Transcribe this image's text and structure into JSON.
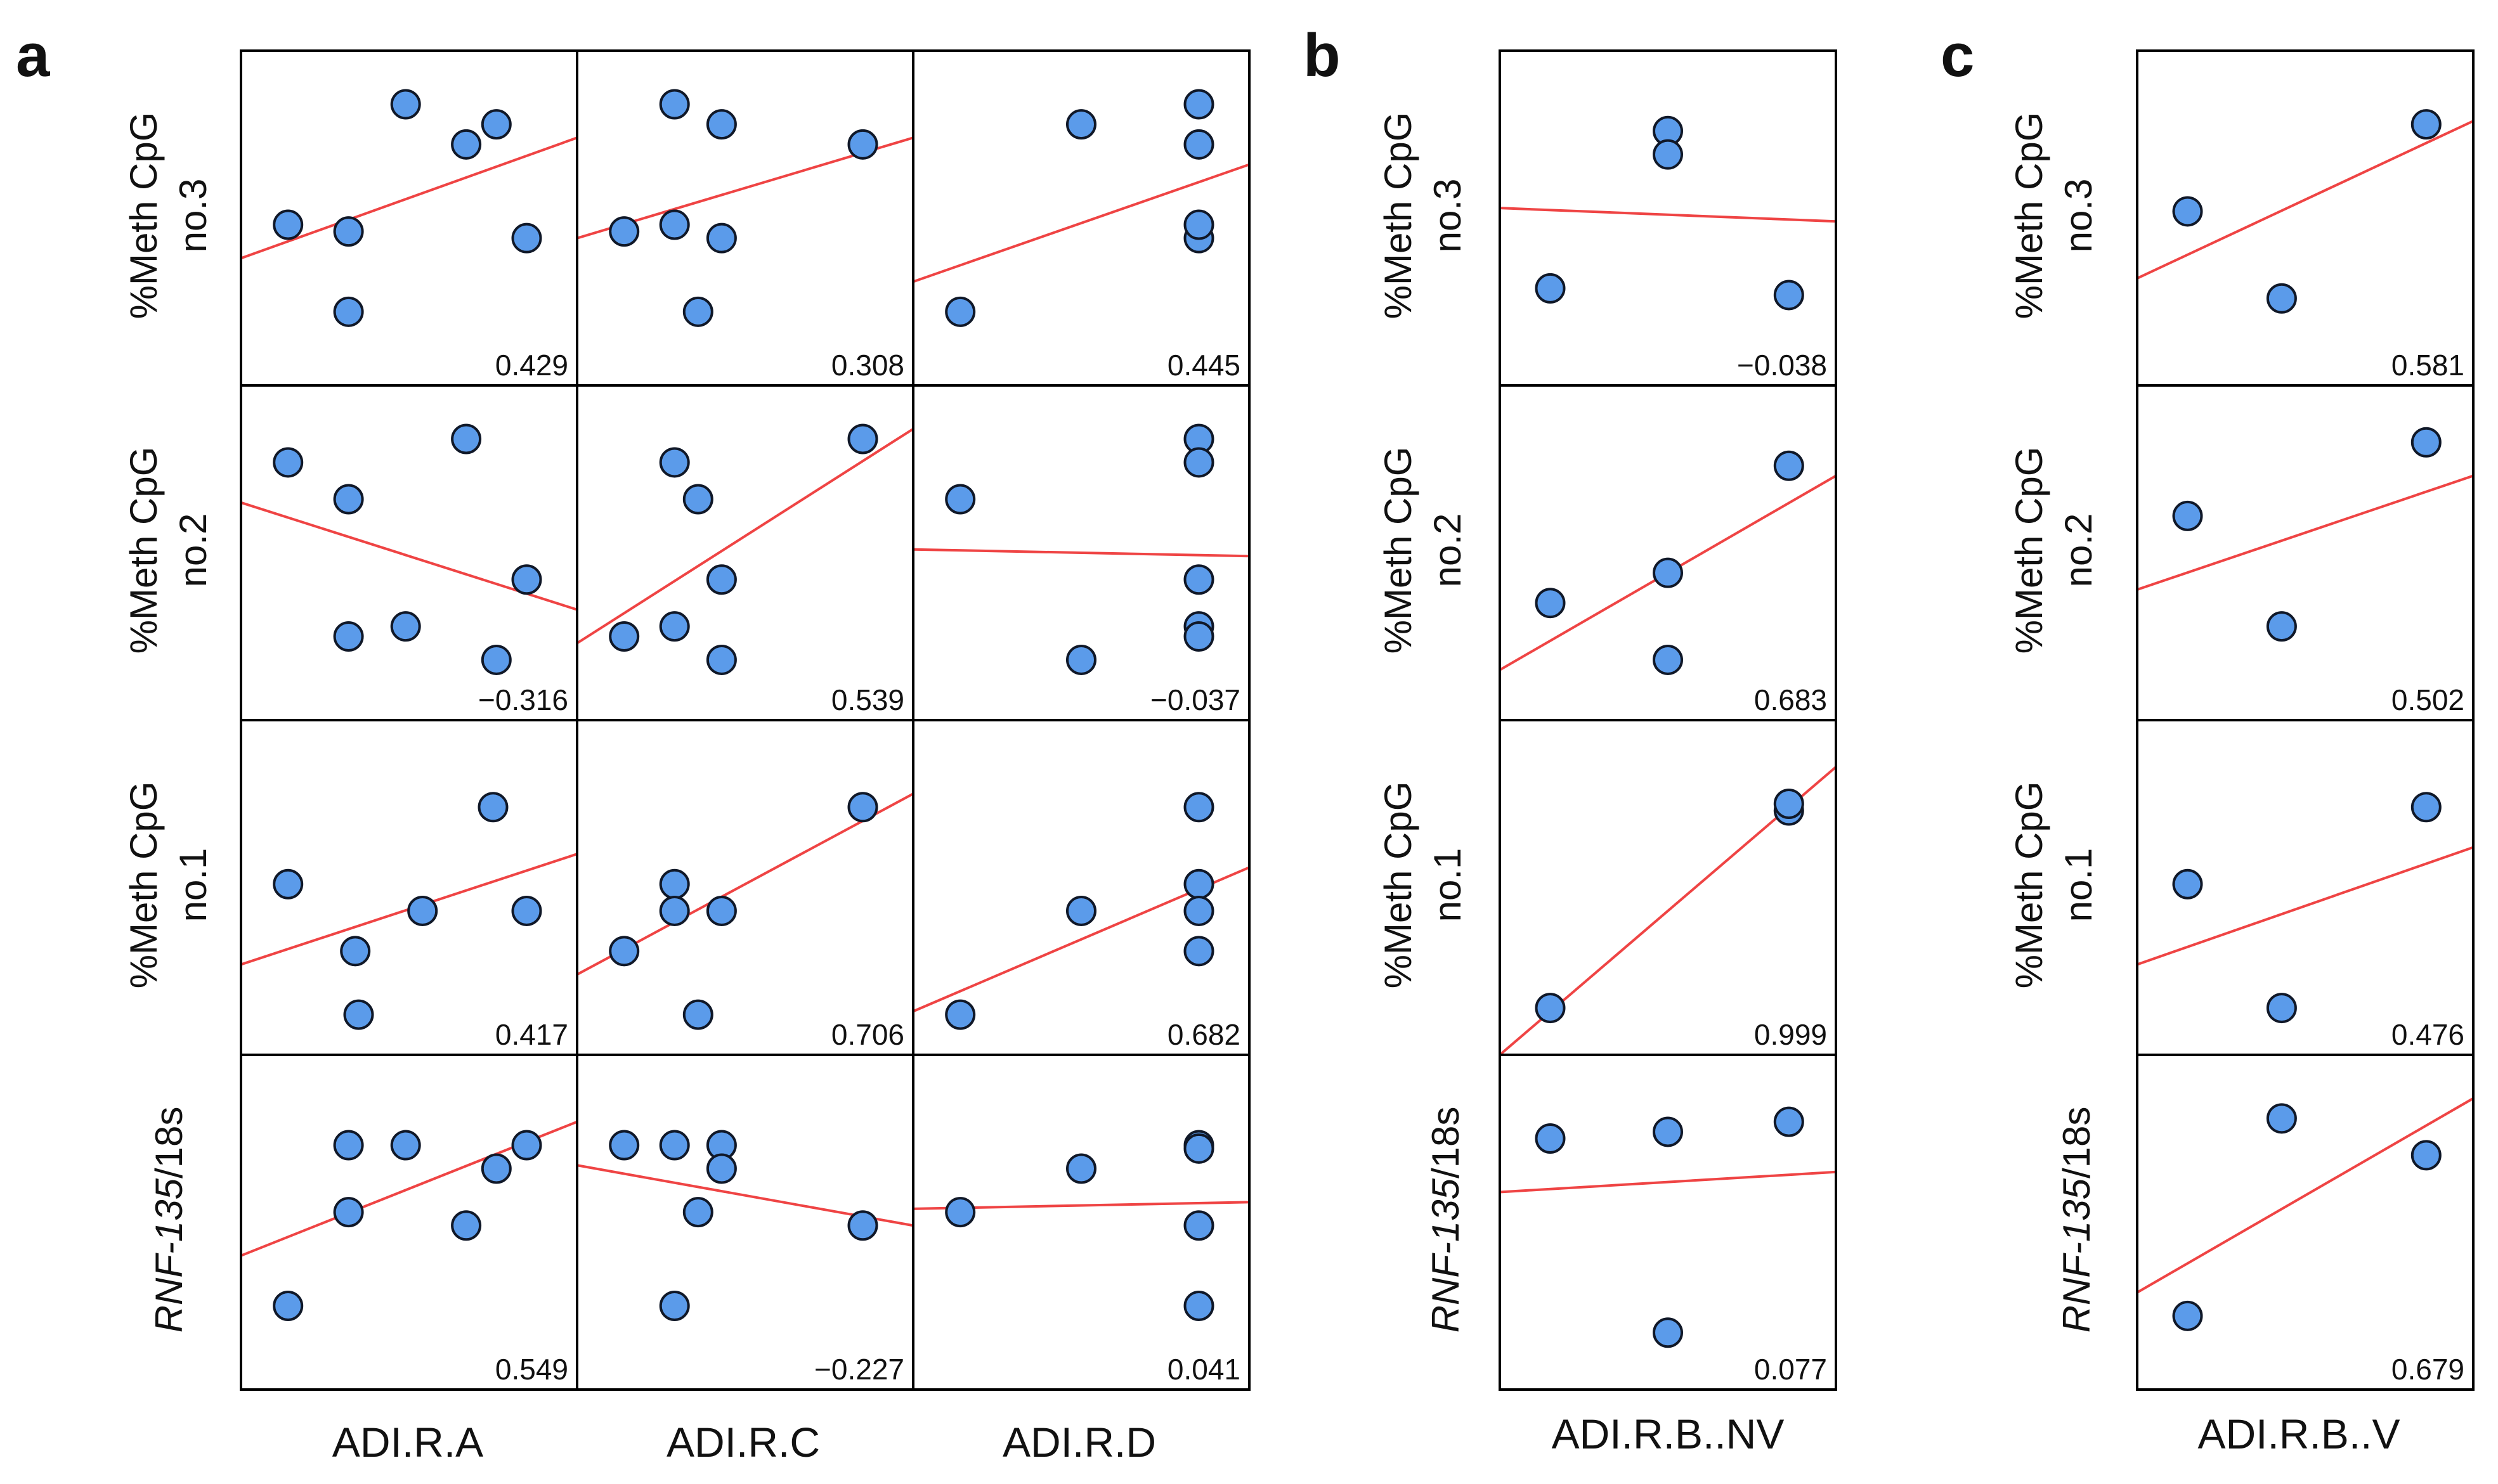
{
  "panels": [
    {
      "letter": "a",
      "rows": [
        {
          "label": "%Meth CpG",
          "label2": "no.3"
        },
        {
          "label": "%Meth CpG",
          "label2": "no.2"
        },
        {
          "label": "%Meth CpG",
          "label2": "no.1"
        },
        {
          "label": "RNF-135",
          "label2": "/18s"
        }
      ],
      "columns": [
        "ADI.R.A",
        "ADI.R.C",
        "ADI.R.D"
      ]
    },
    {
      "letter": "b",
      "rows": [
        {
          "label": "%Meth CpG",
          "label2": "no.3"
        },
        {
          "label": "%Meth CpG",
          "label2": "no.2"
        },
        {
          "label": "%Meth CpG",
          "label2": "no.1"
        },
        {
          "label": "RNF-135",
          "label2": "/18s"
        }
      ],
      "columns": [
        "ADI.R.B..NV"
      ]
    },
    {
      "letter": "c",
      "rows": [
        {
          "label": "%Meth CpG",
          "label2": "no.3"
        },
        {
          "label": "%Meth CpG",
          "label2": "no.2"
        },
        {
          "label": "%Meth CpG",
          "label2": "no.1"
        },
        {
          "label": "RNF-135",
          "label2": "/18s"
        }
      ],
      "columns": [
        "ADI.R.B..V"
      ]
    }
  ],
  "chart_data": {
    "type": "scatter",
    "description_units": "Values normalized to each cell's own 0-1 range (axes unlabeled in original); fit given as y at x=0 and x=1.",
    "x_range": [
      0,
      1
    ],
    "y_range": [
      0,
      1
    ],
    "cells": [
      {
        "panel": "a",
        "row": 0,
        "col": 0,
        "r": "0.429",
        "points": [
          [
            0.14,
            0.48
          ],
          [
            0.32,
            0.46
          ],
          [
            0.32,
            0.22
          ],
          [
            0.49,
            0.84
          ],
          [
            0.67,
            0.72
          ],
          [
            0.76,
            0.78
          ],
          [
            0.85,
            0.44
          ]
        ],
        "fit": [
          0.38,
          0.74
        ]
      },
      {
        "panel": "a",
        "row": 0,
        "col": 1,
        "r": "0.308",
        "points": [
          [
            0.14,
            0.46
          ],
          [
            0.29,
            0.48
          ],
          [
            0.29,
            0.84
          ],
          [
            0.36,
            0.22
          ],
          [
            0.43,
            0.44
          ],
          [
            0.43,
            0.78
          ],
          [
            0.85,
            0.72
          ]
        ],
        "fit": [
          0.44,
          0.74
        ]
      },
      {
        "panel": "a",
        "row": 0,
        "col": 2,
        "r": "0.445",
        "points": [
          [
            0.14,
            0.22
          ],
          [
            0.5,
            0.78
          ],
          [
            0.85,
            0.44
          ],
          [
            0.85,
            0.48
          ],
          [
            0.85,
            0.72
          ],
          [
            0.85,
            0.84
          ]
        ],
        "fit": [
          0.31,
          0.66
        ]
      },
      {
        "panel": "a",
        "row": 1,
        "col": 0,
        "r": "-0.316",
        "points": [
          [
            0.14,
            0.77
          ],
          [
            0.32,
            0.66
          ],
          [
            0.32,
            0.25
          ],
          [
            0.49,
            0.28
          ],
          [
            0.67,
            0.84
          ],
          [
            0.76,
            0.18
          ],
          [
            0.85,
            0.42
          ]
        ],
        "fit": [
          0.65,
          0.33
        ]
      },
      {
        "panel": "a",
        "row": 1,
        "col": 1,
        "r": "0.539",
        "points": [
          [
            0.14,
            0.25
          ],
          [
            0.29,
            0.77
          ],
          [
            0.29,
            0.28
          ],
          [
            0.36,
            0.66
          ],
          [
            0.43,
            0.42
          ],
          [
            0.43,
            0.18
          ],
          [
            0.85,
            0.84
          ]
        ],
        "fit": [
          0.23,
          0.87
        ]
      },
      {
        "panel": "a",
        "row": 1,
        "col": 2,
        "r": "-0.037",
        "points": [
          [
            0.14,
            0.66
          ],
          [
            0.5,
            0.18
          ],
          [
            0.85,
            0.84
          ],
          [
            0.85,
            0.77
          ],
          [
            0.85,
            0.42
          ],
          [
            0.85,
            0.28
          ],
          [
            0.85,
            0.25
          ]
        ],
        "fit": [
          0.51,
          0.49
        ]
      },
      {
        "panel": "a",
        "row": 2,
        "col": 0,
        "r": "0.417",
        "points": [
          [
            0.14,
            0.51
          ],
          [
            0.34,
            0.31
          ],
          [
            0.35,
            0.12
          ],
          [
            0.54,
            0.43
          ],
          [
            0.75,
            0.74
          ],
          [
            0.85,
            0.43
          ]
        ],
        "fit": [
          0.27,
          0.6
        ]
      },
      {
        "panel": "a",
        "row": 2,
        "col": 1,
        "r": "0.706",
        "points": [
          [
            0.14,
            0.31
          ],
          [
            0.29,
            0.51
          ],
          [
            0.29,
            0.43
          ],
          [
            0.36,
            0.12
          ],
          [
            0.43,
            0.43
          ],
          [
            0.85,
            0.74
          ]
        ],
        "fit": [
          0.24,
          0.78
        ]
      },
      {
        "panel": "a",
        "row": 2,
        "col": 2,
        "r": "0.682",
        "points": [
          [
            0.14,
            0.12
          ],
          [
            0.5,
            0.43
          ],
          [
            0.85,
            0.74
          ],
          [
            0.85,
            0.51
          ],
          [
            0.85,
            0.43
          ],
          [
            0.85,
            0.31
          ]
        ],
        "fit": [
          0.13,
          0.56
        ]
      },
      {
        "panel": "a",
        "row": 3,
        "col": 0,
        "r": "0.549",
        "points": [
          [
            0.14,
            0.25
          ],
          [
            0.32,
            0.53
          ],
          [
            0.32,
            0.73
          ],
          [
            0.49,
            0.73
          ],
          [
            0.67,
            0.49
          ],
          [
            0.76,
            0.66
          ],
          [
            0.85,
            0.73
          ]
        ],
        "fit": [
          0.4,
          0.8
        ]
      },
      {
        "panel": "a",
        "row": 3,
        "col": 1,
        "r": "-0.227",
        "points": [
          [
            0.14,
            0.73
          ],
          [
            0.29,
            0.73
          ],
          [
            0.29,
            0.25
          ],
          [
            0.36,
            0.53
          ],
          [
            0.43,
            0.73
          ],
          [
            0.43,
            0.66
          ],
          [
            0.85,
            0.49
          ]
        ],
        "fit": [
          0.67,
          0.49
        ]
      },
      {
        "panel": "a",
        "row": 3,
        "col": 2,
        "r": "0.041",
        "points": [
          [
            0.14,
            0.53
          ],
          [
            0.5,
            0.66
          ],
          [
            0.85,
            0.73
          ],
          [
            0.85,
            0.72
          ],
          [
            0.85,
            0.49
          ],
          [
            0.85,
            0.25
          ]
        ],
        "fit": [
          0.54,
          0.56
        ]
      },
      {
        "panel": "b",
        "row": 0,
        "col": 0,
        "r": "-0.038",
        "points": [
          [
            0.15,
            0.29
          ],
          [
            0.5,
            0.76
          ],
          [
            0.5,
            0.69
          ],
          [
            0.86,
            0.27
          ]
        ],
        "fit": [
          0.53,
          0.49
        ]
      },
      {
        "panel": "b",
        "row": 1,
        "col": 0,
        "r": "0.683",
        "points": [
          [
            0.15,
            0.35
          ],
          [
            0.5,
            0.44
          ],
          [
            0.5,
            0.18
          ],
          [
            0.86,
            0.76
          ]
        ],
        "fit": [
          0.15,
          0.73
        ]
      },
      {
        "panel": "b",
        "row": 2,
        "col": 0,
        "r": "0.999",
        "points": [
          [
            0.15,
            0.14
          ],
          [
            0.86,
            0.73
          ],
          [
            0.86,
            0.75
          ]
        ],
        "fit": [
          0.0,
          0.86
        ]
      },
      {
        "panel": "b",
        "row": 3,
        "col": 0,
        "r": "0.077",
        "points": [
          [
            0.15,
            0.75
          ],
          [
            0.5,
            0.77
          ],
          [
            0.5,
            0.17
          ],
          [
            0.86,
            0.8
          ]
        ],
        "fit": [
          0.59,
          0.65
        ]
      },
      {
        "panel": "c",
        "row": 0,
        "col": 0,
        "r": "0.581",
        "points": [
          [
            0.15,
            0.52
          ],
          [
            0.43,
            0.26
          ],
          [
            0.86,
            0.78
          ]
        ],
        "fit": [
          0.32,
          0.79
        ]
      },
      {
        "panel": "c",
        "row": 1,
        "col": 0,
        "r": "0.502",
        "points": [
          [
            0.15,
            0.61
          ],
          [
            0.43,
            0.28
          ],
          [
            0.86,
            0.83
          ]
        ],
        "fit": [
          0.39,
          0.73
        ]
      },
      {
        "panel": "c",
        "row": 2,
        "col": 0,
        "r": "0.476",
        "points": [
          [
            0.15,
            0.51
          ],
          [
            0.43,
            0.14
          ],
          [
            0.86,
            0.74
          ]
        ],
        "fit": [
          0.27,
          0.62
        ]
      },
      {
        "panel": "c",
        "row": 3,
        "col": 0,
        "r": "0.679",
        "points": [
          [
            0.15,
            0.22
          ],
          [
            0.43,
            0.81
          ],
          [
            0.86,
            0.7
          ]
        ],
        "fit": [
          0.29,
          0.87
        ]
      }
    ]
  }
}
